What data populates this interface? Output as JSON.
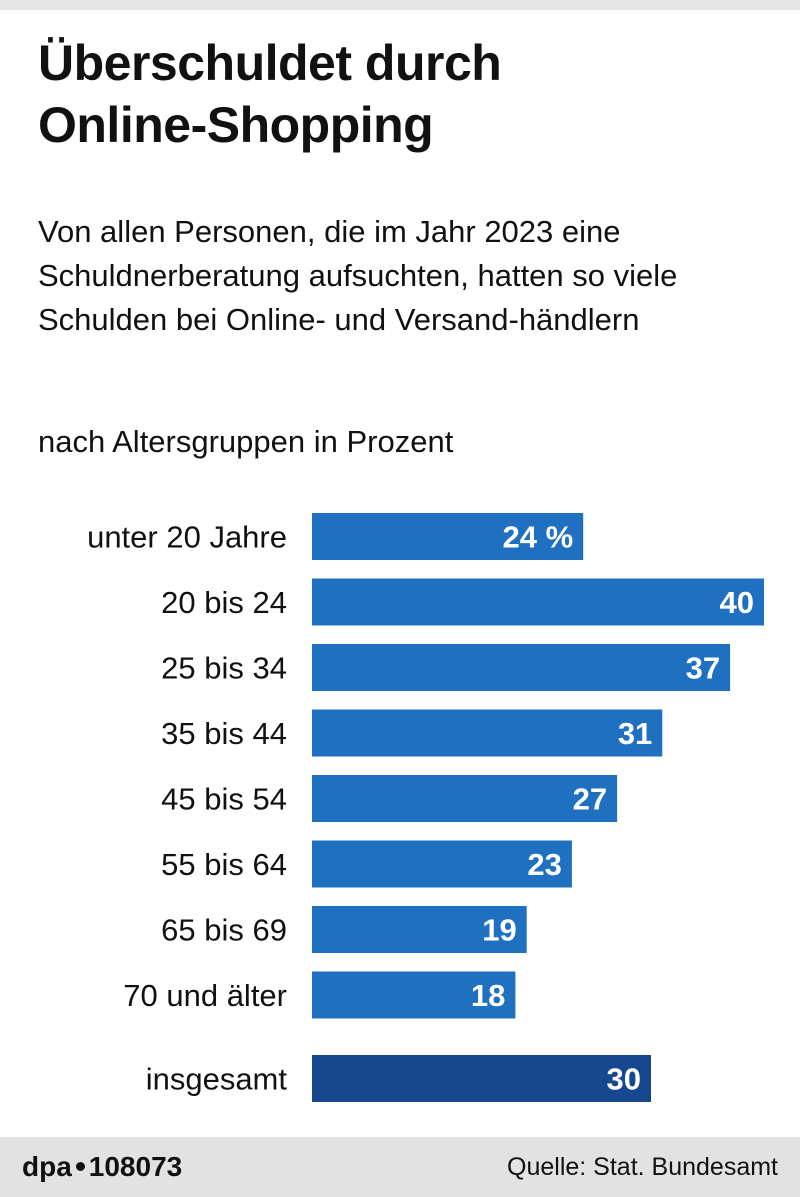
{
  "title": {
    "line1": "Überschuldet durch",
    "line2": "Online-Shopping"
  },
  "subtitle": "Von allen Personen, die im Jahr 2023 eine Schuldnerberatung aufsuchten, hatten so viele Schulden bei Online- und Versand-händlern",
  "unit_note": "nach Altersgruppen in Prozent",
  "chart_data": {
    "type": "bar",
    "orientation": "horizontal",
    "unit": "%",
    "categories": [
      "unter 20 Jahre",
      "20 bis 24",
      "25 bis 34",
      "35 bis 44",
      "45 bis 54",
      "55 bis 64",
      "65 bis 69",
      "70 und älter",
      "insgesamt"
    ],
    "values": [
      24,
      40,
      37,
      31,
      27,
      23,
      19,
      18,
      30
    ],
    "value_labels": [
      "24 %",
      "40",
      "37",
      "31",
      "27",
      "23",
      "19",
      "18",
      "30"
    ],
    "highlight_index": 8,
    "xlim": [
      0,
      40
    ],
    "title": "Überschuldet durch Online-Shopping",
    "xlabel": "",
    "ylabel": ""
  },
  "colors": {
    "bar": "#1f70c1",
    "bar_total": "#17488f",
    "value_text": "#ffffff"
  },
  "footer": {
    "brand_left": "dpa",
    "brand_right": "108073",
    "source": "Quelle: Stat. Bundesamt"
  }
}
